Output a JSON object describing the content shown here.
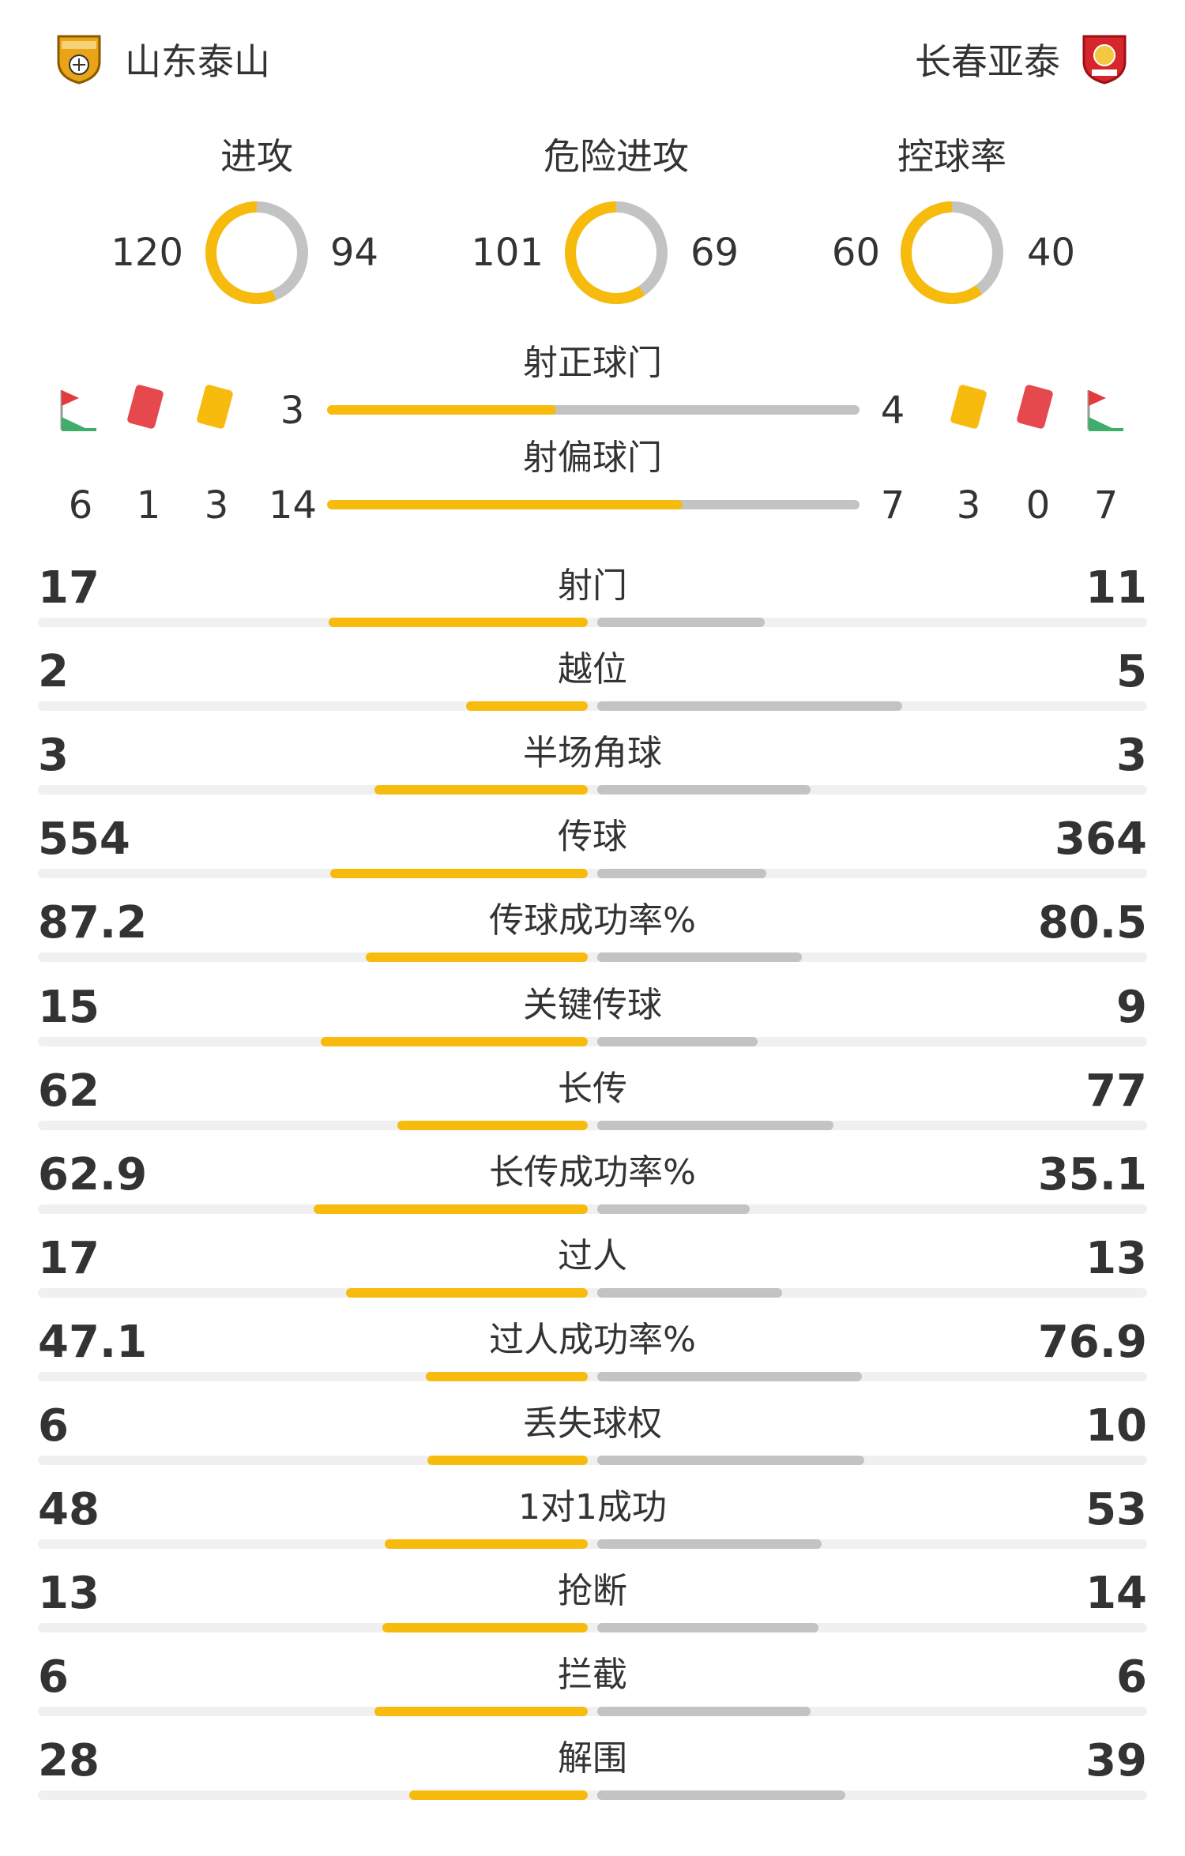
{
  "home": {
    "name": "山东泰山",
    "crest_color": "#e8a317"
  },
  "away": {
    "name": "长春亚泰",
    "crest_color": "#d7262b"
  },
  "colors": {
    "home": "#f7bb0e",
    "away": "#c3c3c3",
    "track": "#f0f0f0"
  },
  "donuts": [
    {
      "label": "进攻",
      "home": "120",
      "away": "94",
      "home_share": 0.561
    },
    {
      "label": "危险进攻",
      "home": "101",
      "away": "69",
      "home_share": 0.594
    },
    {
      "label": "控球率",
      "home": "60",
      "away": "40",
      "home_share": 0.6
    }
  ],
  "shots_on": {
    "label": "射正球门",
    "home": "3",
    "away": "4",
    "home_share": 0.43
  },
  "shots_off": {
    "label": "射偏球门",
    "home": "14",
    "away": "7",
    "home_share": 0.667
  },
  "home_counts": {
    "corners": "6",
    "red": "1",
    "yellow": "3"
  },
  "away_counts": {
    "yellow": "3",
    "red": "0",
    "corners": "7"
  },
  "icons": [
    "corner-flag-icon",
    "red-card-icon",
    "yellow-card-icon"
  ],
  "stats": [
    {
      "label": "射门",
      "home": "17",
      "away": "11",
      "home_pct": 0.607,
      "away_pct": 0.393
    },
    {
      "label": "越位",
      "home": "2",
      "away": "5",
      "home_pct": 0.286,
      "away_pct": 0.714
    },
    {
      "label": "半场角球",
      "home": "3",
      "away": "3",
      "home_pct": 0.5,
      "away_pct": 0.5
    },
    {
      "label": "传球",
      "home": "554",
      "away": "364",
      "home_pct": 0.603,
      "away_pct": 0.397
    },
    {
      "label": "传球成功率%",
      "home": "87.2",
      "away": "80.5",
      "home_pct": 0.52,
      "away_pct": 0.48
    },
    {
      "label": "关键传球",
      "home": "15",
      "away": "9",
      "home_pct": 0.625,
      "away_pct": 0.375
    },
    {
      "label": "长传",
      "home": "62",
      "away": "77",
      "home_pct": 0.446,
      "away_pct": 0.554
    },
    {
      "label": "长传成功率%",
      "home": "62.9",
      "away": "35.1",
      "home_pct": 0.642,
      "away_pct": 0.358
    },
    {
      "label": "过人",
      "home": "17",
      "away": "13",
      "home_pct": 0.567,
      "away_pct": 0.433
    },
    {
      "label": "过人成功率%",
      "home": "47.1",
      "away": "76.9",
      "home_pct": 0.38,
      "away_pct": 0.62
    },
    {
      "label": "丢失球权",
      "home": "6",
      "away": "10",
      "home_pct": 0.375,
      "away_pct": 0.625
    },
    {
      "label": "1对1成功",
      "home": "48",
      "away": "53",
      "home_pct": 0.475,
      "away_pct": 0.525
    },
    {
      "label": "抢断",
      "home": "13",
      "away": "14",
      "home_pct": 0.481,
      "away_pct": 0.519
    },
    {
      "label": "拦截",
      "home": "6",
      "away": "6",
      "home_pct": 0.5,
      "away_pct": 0.5
    },
    {
      "label": "解围",
      "home": "28",
      "away": "39",
      "home_pct": 0.418,
      "away_pct": 0.582
    }
  ]
}
